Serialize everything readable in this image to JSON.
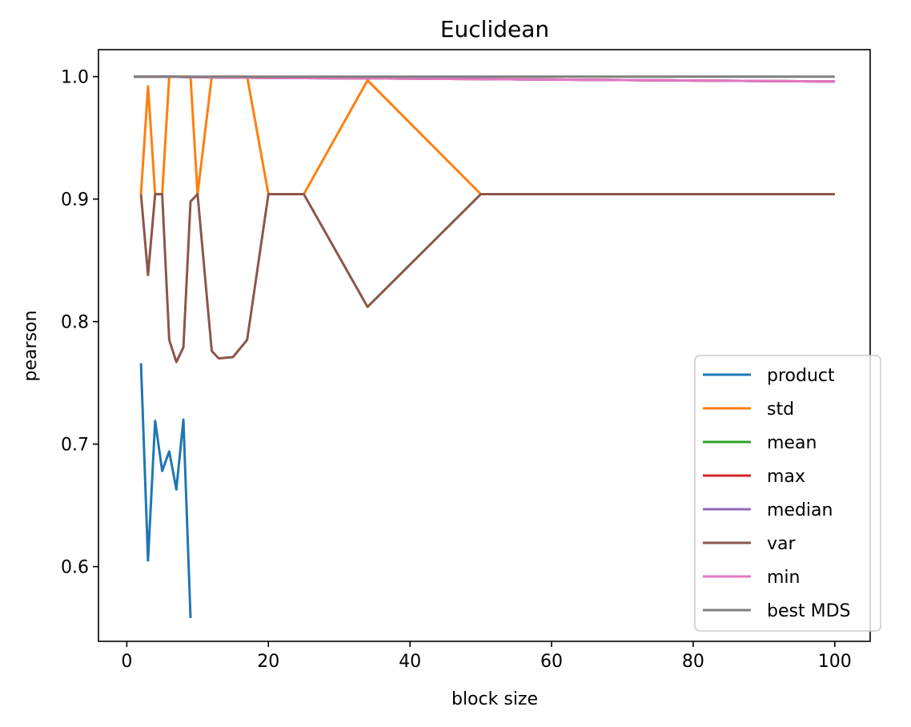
{
  "chart_data": {
    "type": "line",
    "title": "Euclidean",
    "xlabel": "block size",
    "ylabel": "pearson",
    "xlim": [
      -4,
      105
    ],
    "ylim": [
      0.539,
      1.022
    ],
    "xticks": [
      0,
      20,
      40,
      60,
      80,
      100
    ],
    "yticks": [
      0.6,
      0.7,
      0.8,
      0.9,
      1.0
    ],
    "xtick_labels": [
      "0",
      "20",
      "40",
      "60",
      "80",
      "100"
    ],
    "ytick_labels": [
      "0.6",
      "0.7",
      "0.8",
      "0.9",
      "1.0"
    ],
    "grid": false,
    "legend_position": "lower right",
    "series": [
      {
        "name": "product",
        "color": "#1f77b4",
        "x": [
          2,
          3,
          4,
          5,
          6,
          7,
          8,
          9
        ],
        "y": [
          0.766,
          0.605,
          0.719,
          0.678,
          0.694,
          0.663,
          0.72,
          0.558
        ]
      },
      {
        "name": "std",
        "color": "#ff7f0e",
        "x": [
          2,
          3,
          4,
          5,
          6,
          7,
          8,
          9,
          10,
          12,
          15,
          17,
          20,
          25,
          34,
          50,
          100
        ],
        "y": [
          0.904,
          0.992,
          0.904,
          0.904,
          1.0,
          1.0,
          1.0,
          1.0,
          0.904,
          1.0,
          1.0,
          1.0,
          0.904,
          0.904,
          0.997,
          0.904,
          0.904
        ]
      },
      {
        "name": "mean",
        "color": "#2ca02c",
        "x": [
          1,
          2,
          5,
          10,
          20,
          50,
          100
        ],
        "y": [
          1.0,
          1.0,
          1.0,
          0.9995,
          0.999,
          0.998,
          0.996
        ]
      },
      {
        "name": "max",
        "color": "#d62728",
        "x": [
          1,
          2,
          5,
          10,
          20,
          50,
          100
        ],
        "y": [
          1.0,
          1.0,
          1.0,
          0.9995,
          0.999,
          0.998,
          0.996
        ]
      },
      {
        "name": "median",
        "color": "#9467bd",
        "x": [
          1,
          2,
          5,
          10,
          20,
          50,
          100
        ],
        "y": [
          1.0,
          1.0,
          1.0,
          0.9995,
          0.999,
          0.998,
          0.996
        ]
      },
      {
        "name": "var",
        "color": "#8c564b",
        "x": [
          2,
          3,
          4,
          5,
          6,
          7,
          8,
          9,
          10,
          12,
          13,
          15,
          17,
          20,
          25,
          34,
          50,
          100
        ],
        "y": [
          0.904,
          0.838,
          0.904,
          0.904,
          0.785,
          0.767,
          0.779,
          0.898,
          0.904,
          0.776,
          0.77,
          0.771,
          0.785,
          0.904,
          0.904,
          0.812,
          0.904,
          0.904
        ]
      },
      {
        "name": "min",
        "color": "#e377c2",
        "x": [
          1,
          2,
          5,
          10,
          20,
          50,
          100
        ],
        "y": [
          1.0,
          1.0,
          1.0,
          0.9995,
          0.999,
          0.998,
          0.996
        ]
      },
      {
        "name": "best MDS",
        "color": "#7f7f7f",
        "x": [
          1,
          100
        ],
        "y": [
          1.0,
          1.0
        ]
      }
    ]
  }
}
